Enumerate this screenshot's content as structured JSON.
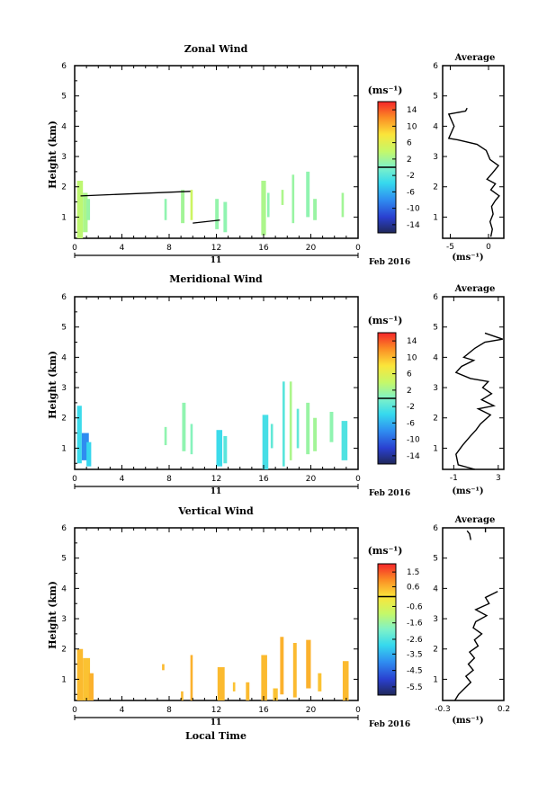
{
  "xlabel": "Local Time",
  "date_label": "Feb 2016",
  "day_label": "11",
  "avg_title": "Average",
  "panels": [
    {
      "title": "Zonal Wind",
      "ylabel": "Height (km)",
      "units": "(ms⁻¹)",
      "cb_ticks": [
        "14",
        "10",
        "6",
        "2",
        "-2",
        "-6",
        "-10",
        "-14"
      ],
      "avg_ticks": [
        "-5",
        "0"
      ]
    },
    {
      "title": "Meridional Wind",
      "ylabel": "Height (km)",
      "units": "(ms⁻¹)",
      "cb_ticks": [
        "14",
        "10",
        "6",
        "2",
        "-2",
        "-6",
        "-10",
        "-14"
      ],
      "avg_ticks": [
        "-1",
        "3"
      ]
    },
    {
      "title": "Vertical Wind",
      "ylabel": "Height (km)",
      "units": "(ms⁻¹)",
      "cb_ticks": [
        "1.5",
        "0.6",
        "-0.6",
        "-1.6",
        "-2.6",
        "-3.5",
        "-4.5",
        "-5.5"
      ],
      "avg_ticks": [
        "-0.3",
        "0.2"
      ]
    }
  ],
  "chart_data": [
    {
      "type": "heatmap",
      "title": "Zonal Wind",
      "ylabel": "Height (km)",
      "xlabel": "",
      "xticks": [
        "0",
        "4",
        "8",
        "12",
        "16",
        "20",
        "0"
      ],
      "yticks": [
        "1",
        "2",
        "3",
        "4",
        "5",
        "6"
      ],
      "xlim": [
        0,
        24
      ],
      "ylim": [
        0.3,
        6
      ],
      "colorbar": {
        "units": "(ms⁻¹)",
        "range": [
          -16,
          16
        ],
        "ticks": [
          14,
          10,
          6,
          2,
          -2,
          -6,
          -10,
          -14
        ]
      },
      "cells": [
        {
          "x": 0.2,
          "w": 0.5,
          "y0": 0.3,
          "y1": 2.2,
          "v": 3.5
        },
        {
          "x": 0.7,
          "w": 0.4,
          "y0": 0.5,
          "y1": 1.8,
          "v": 2.5
        },
        {
          "x": 1.0,
          "w": 0.3,
          "y0": 0.9,
          "y1": 1.6,
          "v": 1.5
        },
        {
          "x": 7.6,
          "w": 0.2,
          "y0": 0.9,
          "y1": 1.6,
          "v": 1.0
        },
        {
          "x": 9.0,
          "w": 0.3,
          "y0": 0.8,
          "y1": 1.9,
          "v": 2.0
        },
        {
          "x": 9.8,
          "w": 0.2,
          "y0": 0.9,
          "y1": 1.9,
          "v": 4.5
        },
        {
          "x": 11.9,
          "w": 0.3,
          "y0": 0.6,
          "y1": 1.6,
          "v": 1.2
        },
        {
          "x": 12.6,
          "w": 0.3,
          "y0": 0.5,
          "y1": 1.5,
          "v": 1.0
        },
        {
          "x": 15.8,
          "w": 0.4,
          "y0": 0.4,
          "y1": 2.2,
          "v": 2.5
        },
        {
          "x": 16.3,
          "w": 0.2,
          "y0": 1.0,
          "y1": 1.8,
          "v": 1.0
        },
        {
          "x": 17.5,
          "w": 0.2,
          "y0": 1.4,
          "y1": 1.9,
          "v": 2.5
        },
        {
          "x": 18.4,
          "w": 0.2,
          "y0": 0.8,
          "y1": 2.4,
          "v": 1.5
        },
        {
          "x": 19.6,
          "w": 0.3,
          "y0": 1.0,
          "y1": 2.5,
          "v": 1.0
        },
        {
          "x": 20.2,
          "w": 0.3,
          "y0": 0.9,
          "y1": 1.6,
          "v": 1.5
        },
        {
          "x": 22.6,
          "w": 0.2,
          "y0": 1.0,
          "y1": 1.8,
          "v": 2.0
        }
      ],
      "lines": [
        {
          "points": [
            [
              0.5,
              1.7
            ],
            [
              9.8,
              1.85
            ]
          ]
        },
        {
          "points": [
            [
              10.0,
              0.8
            ],
            [
              12.3,
              0.9
            ]
          ]
        }
      ],
      "profile": {
        "xlim": [
          -6,
          2
        ],
        "xticks": [
          -5,
          0
        ],
        "points": [
          [
            0.3,
            0.35
          ],
          [
            0.5,
            0.6
          ],
          [
            0.2,
            0.85
          ],
          [
            0.6,
            1.1
          ],
          [
            0.4,
            1.35
          ],
          [
            0.9,
            1.55
          ],
          [
            1.4,
            1.7
          ],
          [
            0.3,
            1.9
          ],
          [
            0.9,
            2.1
          ],
          [
            -0.2,
            2.25
          ],
          [
            0.5,
            2.45
          ],
          [
            1.3,
            2.7
          ],
          [
            0.2,
            2.9
          ],
          [
            -0.3,
            3.2
          ],
          [
            -1.5,
            3.4
          ],
          [
            -4.0,
            3.55
          ],
          [
            -5.2,
            3.6
          ],
          [
            -4.5,
            4.0
          ],
          [
            -5.2,
            4.4
          ],
          [
            -3.0,
            4.5
          ],
          [
            -2.8,
            4.6
          ]
        ]
      }
    },
    {
      "type": "heatmap",
      "title": "Meridional Wind",
      "ylabel": "Height (km)",
      "xlabel": "",
      "xticks": [
        "0",
        "4",
        "8",
        "12",
        "16",
        "20",
        "0"
      ],
      "yticks": [
        "1",
        "2",
        "3",
        "4",
        "5",
        "6"
      ],
      "xlim": [
        0,
        24
      ],
      "ylim": [
        0.3,
        6
      ],
      "colorbar": {
        "units": "(ms⁻¹)",
        "range": [
          -16,
          16
        ],
        "ticks": [
          14,
          10,
          6,
          2,
          -2,
          -6,
          -10,
          -14
        ]
      },
      "cells": [
        {
          "x": 0.2,
          "w": 0.4,
          "y0": 0.5,
          "y1": 2.4,
          "v": -3.5
        },
        {
          "x": 0.6,
          "w": 0.6,
          "y0": 0.6,
          "y1": 1.5,
          "v": -8.0
        },
        {
          "x": 1.0,
          "w": 0.4,
          "y0": 0.4,
          "y1": 1.2,
          "v": -4.0
        },
        {
          "x": 7.6,
          "w": 0.2,
          "y0": 1.1,
          "y1": 1.7,
          "v": 1.0
        },
        {
          "x": 9.1,
          "w": 0.3,
          "y0": 0.9,
          "y1": 2.5,
          "v": 1.0
        },
        {
          "x": 9.8,
          "w": 0.2,
          "y0": 0.8,
          "y1": 1.8,
          "v": 0.5
        },
        {
          "x": 12.0,
          "w": 0.5,
          "y0": 0.4,
          "y1": 1.6,
          "v": -3.5
        },
        {
          "x": 12.6,
          "w": 0.3,
          "y0": 0.5,
          "y1": 1.4,
          "v": -2.0
        },
        {
          "x": 15.9,
          "w": 0.5,
          "y0": 0.3,
          "y1": 2.1,
          "v": -3.0
        },
        {
          "x": 16.6,
          "w": 0.2,
          "y0": 1.0,
          "y1": 1.8,
          "v": -1.5
        },
        {
          "x": 17.6,
          "w": 0.2,
          "y0": 0.4,
          "y1": 3.2,
          "v": -2.0
        },
        {
          "x": 18.2,
          "w": 0.2,
          "y0": 0.6,
          "y1": 3.2,
          "v": 2.5
        },
        {
          "x": 18.8,
          "w": 0.2,
          "y0": 1.0,
          "y1": 2.3,
          "v": -1.5
        },
        {
          "x": 19.6,
          "w": 0.3,
          "y0": 0.8,
          "y1": 2.5,
          "v": 1.5
        },
        {
          "x": 20.2,
          "w": 0.3,
          "y0": 0.9,
          "y1": 2.0,
          "v": 2.0
        },
        {
          "x": 21.6,
          "w": 0.3,
          "y0": 1.2,
          "y1": 2.2,
          "v": 1.0
        },
        {
          "x": 22.6,
          "w": 0.5,
          "y0": 0.6,
          "y1": 1.9,
          "v": -2.5
        }
      ],
      "lines": [],
      "profile": {
        "xlim": [
          -2,
          3.5
        ],
        "xticks": [
          -1,
          3
        ],
        "points": [
          [
            0.9,
            0.3
          ],
          [
            -0.6,
            0.45
          ],
          [
            -0.8,
            0.8
          ],
          [
            -0.2,
            1.1
          ],
          [
            0.5,
            1.4
          ],
          [
            1.0,
            1.6
          ],
          [
            1.4,
            1.8
          ],
          [
            2.0,
            2.0
          ],
          [
            2.3,
            2.1
          ],
          [
            1.2,
            2.3
          ],
          [
            2.6,
            2.4
          ],
          [
            1.5,
            2.6
          ],
          [
            2.4,
            2.8
          ],
          [
            1.6,
            3.0
          ],
          [
            2.1,
            3.2
          ],
          [
            0.5,
            3.3
          ],
          [
            -0.8,
            3.5
          ],
          [
            -0.3,
            3.7
          ],
          [
            0.8,
            3.9
          ],
          [
            -0.1,
            4.0
          ],
          [
            0.9,
            4.3
          ],
          [
            1.8,
            4.5
          ],
          [
            3.4,
            4.6
          ],
          [
            1.8,
            4.8
          ]
        ]
      }
    },
    {
      "type": "heatmap",
      "title": "Vertical Wind",
      "ylabel": "Height (km)",
      "xlabel": "Local Time",
      "xticks": [
        "0",
        "4",
        "8",
        "12",
        "16",
        "20",
        "0"
      ],
      "yticks": [
        "1",
        "2",
        "3",
        "4",
        "5",
        "6"
      ],
      "xlim": [
        0,
        24
      ],
      "ylim": [
        0.3,
        6
      ],
      "colorbar": {
        "units": "(ms⁻¹)",
        "range": [
          -6,
          2
        ],
        "ticks": [
          1.5,
          0.6,
          -0.6,
          -1.6,
          -2.6,
          -3.5,
          -4.5,
          -5.5
        ]
      },
      "cells": [
        {
          "x": 0.2,
          "w": 0.5,
          "y0": 0.3,
          "y1": 2.0,
          "v": 0.5
        },
        {
          "x": 0.7,
          "w": 0.6,
          "y0": 0.3,
          "y1": 1.7,
          "v": 0.4
        },
        {
          "x": 1.2,
          "w": 0.4,
          "y0": 0.3,
          "y1": 1.2,
          "v": 0.6
        },
        {
          "x": 7.4,
          "w": 0.2,
          "y0": 1.3,
          "y1": 1.5,
          "v": 0.5
        },
        {
          "x": 9.0,
          "w": 0.2,
          "y0": 0.3,
          "y1": 0.6,
          "v": 0.5
        },
        {
          "x": 9.8,
          "w": 0.2,
          "y0": 0.3,
          "y1": 1.8,
          "v": 0.6
        },
        {
          "x": 12.1,
          "w": 0.6,
          "y0": 0.3,
          "y1": 1.4,
          "v": 0.5
        },
        {
          "x": 13.4,
          "w": 0.2,
          "y0": 0.6,
          "y1": 0.9,
          "v": 0.4
        },
        {
          "x": 14.5,
          "w": 0.3,
          "y0": 0.3,
          "y1": 0.9,
          "v": 0.5
        },
        {
          "x": 15.8,
          "w": 0.5,
          "y0": 0.3,
          "y1": 1.8,
          "v": 0.5
        },
        {
          "x": 16.8,
          "w": 0.4,
          "y0": 0.3,
          "y1": 0.7,
          "v": 0.4
        },
        {
          "x": 17.4,
          "w": 0.3,
          "y0": 0.5,
          "y1": 2.4,
          "v": 0.6
        },
        {
          "x": 18.5,
          "w": 0.3,
          "y0": 0.4,
          "y1": 2.2,
          "v": 0.5
        },
        {
          "x": 19.6,
          "w": 0.4,
          "y0": 0.7,
          "y1": 2.3,
          "v": 0.6
        },
        {
          "x": 20.6,
          "w": 0.3,
          "y0": 0.6,
          "y1": 1.2,
          "v": 0.4
        },
        {
          "x": 22.7,
          "w": 0.5,
          "y0": 0.3,
          "y1": 1.6,
          "v": 0.5
        }
      ],
      "lines": [],
      "profile": {
        "xlim": [
          -0.3,
          0.2
        ],
        "xticks": [
          -0.3,
          0.2
        ],
        "points": [
          [
            -0.2,
            0.3
          ],
          [
            -0.17,
            0.5
          ],
          [
            -0.12,
            0.7
          ],
          [
            -0.07,
            0.9
          ],
          [
            -0.11,
            1.1
          ],
          [
            -0.05,
            1.3
          ],
          [
            -0.09,
            1.5
          ],
          [
            -0.04,
            1.7
          ],
          [
            -0.08,
            1.9
          ],
          [
            -0.01,
            2.1
          ],
          [
            -0.04,
            2.3
          ],
          [
            0.02,
            2.5
          ],
          [
            -0.05,
            2.7
          ],
          [
            -0.03,
            2.9
          ],
          [
            0.06,
            3.1
          ],
          [
            -0.03,
            3.3
          ],
          [
            0.08,
            3.5
          ],
          [
            0.05,
            3.7
          ],
          [
            0.15,
            3.9
          ]
        ],
        "extra": [
          [
            [
              -0.1,
              5.9
            ],
            [
              -0.08,
              5.8
            ],
            [
              -0.07,
              5.6
            ]
          ],
          [
            [
              0.05,
              6.0
            ],
            [
              0.05,
              5.85
            ]
          ]
        ]
      }
    }
  ]
}
